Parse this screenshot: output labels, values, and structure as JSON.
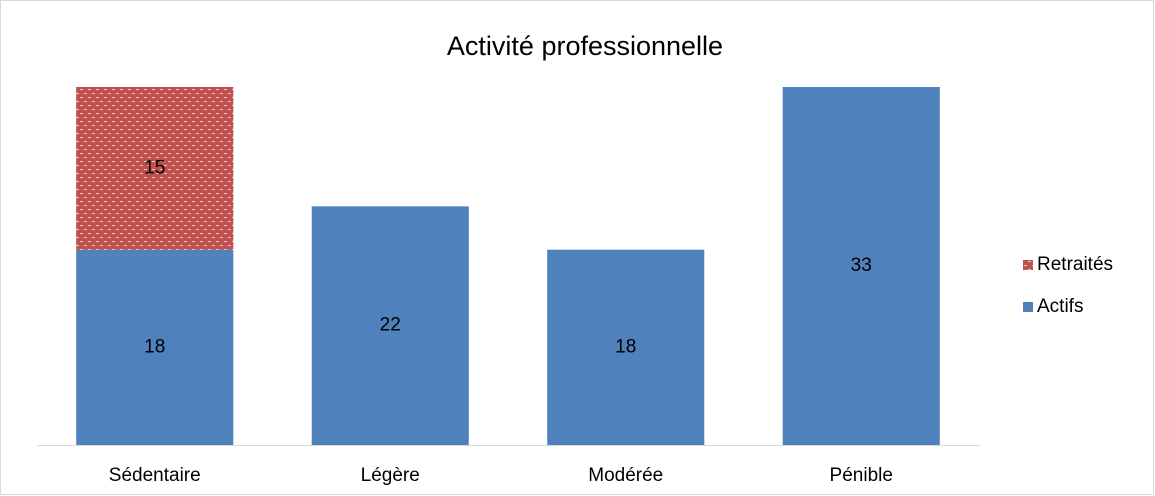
{
  "chart_data": {
    "type": "stacked_bar",
    "title": "Activité professionnelle",
    "categories": [
      "Sédentaire",
      "Légère",
      "Modérée",
      "Pénible"
    ],
    "series": [
      {
        "name": "Actifs",
        "color": "#4f81bd",
        "values": [
          18,
          22,
          18,
          33
        ]
      },
      {
        "name": "Retraités",
        "color": "#c0504d",
        "values": [
          15,
          null,
          null,
          null
        ]
      }
    ],
    "ylim": [
      0,
      33
    ],
    "legend": "right"
  }
}
